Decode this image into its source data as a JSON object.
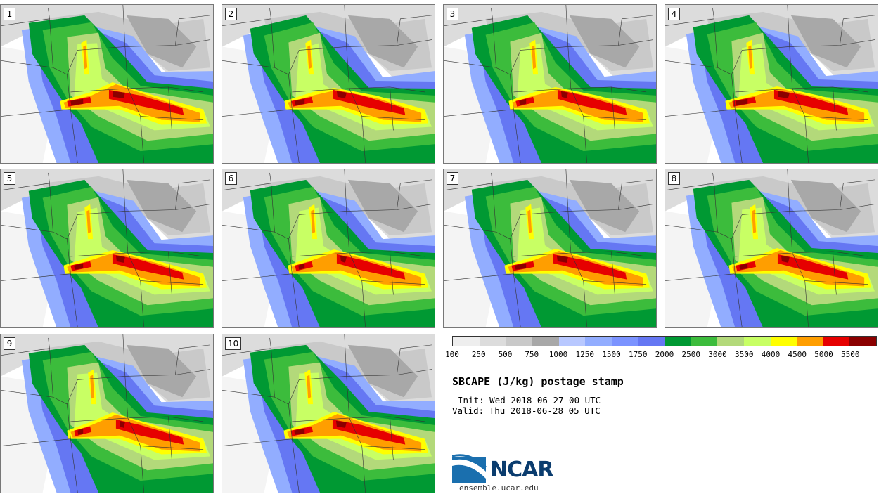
{
  "panels": [
    {
      "label": "1"
    },
    {
      "label": "2"
    },
    {
      "label": "3"
    },
    {
      "label": "4"
    },
    {
      "label": "5"
    },
    {
      "label": "6"
    },
    {
      "label": "7"
    },
    {
      "label": "8"
    },
    {
      "label": "9"
    },
    {
      "label": "10"
    }
  ],
  "colorbar": {
    "colors": [
      "#eeeeee",
      "#dcdcdc",
      "#c9c9c9",
      "#a8a8a8",
      "#b8c8ff",
      "#92adff",
      "#7b93ff",
      "#6577f3",
      "#009933",
      "#3cbc3c",
      "#b3d97a",
      "#c8ff64",
      "#ffff00",
      "#ff9e00",
      "#e60000",
      "#8b0000"
    ],
    "tick_labels": [
      "100",
      "250",
      "500",
      "750",
      "1000",
      "1250",
      "1500",
      "1750",
      "2000",
      "2500",
      "3000",
      "3500",
      "4000",
      "4500",
      "5000",
      "5500"
    ]
  },
  "title": "SBCAPE (J/kg) postage stamp",
  "init": "Init: Wed 2018-06-27 00 UTC",
  "valid": "Valid: Thu 2018-06-28 05 UTC",
  "logo": {
    "name": "NCAR",
    "url": "ensemble.ucar.edu"
  }
}
